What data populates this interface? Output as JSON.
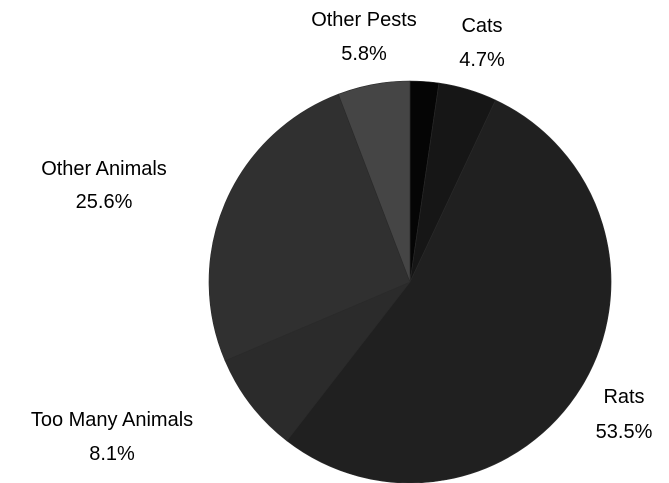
{
  "chart_data": {
    "type": "pie",
    "title": "",
    "start": "12 o'clock",
    "direction": "clockwise",
    "slices": [
      {
        "label": "",
        "percent_label": "",
        "value": 2.3,
        "color": "#050505"
      },
      {
        "label": "Cats",
        "percent_label": "4.7%",
        "value": 4.7,
        "color": "#161616"
      },
      {
        "label": "Rats",
        "percent_label": "53.5%",
        "value": 53.5,
        "color": "#202020"
      },
      {
        "label": "Too Many Animals",
        "percent_label": "8.1%",
        "value": 8.1,
        "color": "#2b2b2b"
      },
      {
        "label": "Other Animals",
        "percent_label": "25.6%",
        "value": 25.6,
        "color": "#303030"
      },
      {
        "label": "Other Pests",
        "percent_label": "5.8%",
        "value": 5.8,
        "color": "#454545"
      }
    ]
  }
}
